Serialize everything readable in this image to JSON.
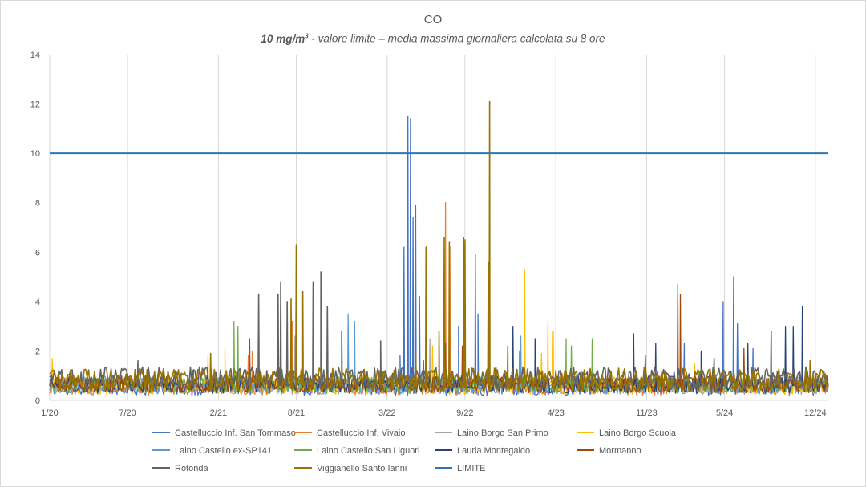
{
  "chart_data": {
    "type": "line",
    "title": "CO",
    "subtitle": {
      "limit_value": "10 mg/m",
      "unit_superscript": "3",
      "text": " - valore limite – media massima giornaliera calcolata su 8 ore"
    },
    "x_tick_labels": [
      "1/20",
      "7/20",
      "2/21",
      "8/21",
      "3/22",
      "9/22",
      "4/23",
      "11/23",
      "5/24",
      "12/24"
    ],
    "x_ticks_months": [
      0,
      6,
      13,
      19,
      26,
      32,
      39,
      46,
      52,
      59
    ],
    "x_range_months": [
      0,
      60
    ],
    "ylim": [
      0,
      14
    ],
    "y_ticks": [
      0,
      2,
      4,
      6,
      8,
      10,
      12,
      14
    ],
    "grid": "vertical",
    "legend_position": "bottom",
    "series": [
      {
        "name": "Castelluccio Inf. San Tommaso",
        "color": "#4472c4",
        "peaks": [
          [
            27.0,
            1.8
          ],
          [
            27.3,
            6.2
          ],
          [
            27.6,
            11.5
          ],
          [
            27.8,
            11.4
          ],
          [
            28.0,
            7.4
          ],
          [
            28.2,
            7.9
          ],
          [
            28.5,
            4.2
          ],
          [
            31.5,
            3.0
          ],
          [
            32.8,
            5.9
          ],
          [
            33.0,
            3.5
          ],
          [
            48.9,
            2.3
          ],
          [
            51.9,
            4.0
          ],
          [
            52.7,
            5.0
          ],
          [
            53.0,
            3.1
          ],
          [
            54.2,
            2.1
          ]
        ]
      },
      {
        "name": "Castelluccio Inf. Vivaio",
        "color": "#ed7d31",
        "peaks": [
          [
            15.3,
            1.8
          ],
          [
            15.6,
            2.0
          ],
          [
            18.7,
            3.2
          ],
          [
            30.5,
            8.0
          ],
          [
            30.9,
            6.2
          ]
        ]
      },
      {
        "name": "Laino Borgo San Primo",
        "color": "#a5a5a5",
        "peaks": [
          [
            18.9,
            2.6
          ],
          [
            29.3,
            2.5
          ],
          [
            30.0,
            2.2
          ]
        ]
      },
      {
        "name": "Laino Borgo Scuola",
        "color": "#ffc000",
        "peaks": [
          [
            0.2,
            1.7
          ],
          [
            12.2,
            1.8
          ],
          [
            13.5,
            2.1
          ],
          [
            29.5,
            2.2
          ],
          [
            36.6,
            5.3
          ],
          [
            37.9,
            1.9
          ],
          [
            38.4,
            3.2
          ],
          [
            38.8,
            2.8
          ],
          [
            49.7,
            1.5
          ]
        ]
      },
      {
        "name": "Laino Castello ex-SP141",
        "color": "#5b9bd5",
        "peaks": [
          [
            23.0,
            3.5
          ],
          [
            23.5,
            3.2
          ],
          [
            36.3,
            2.6
          ]
        ]
      },
      {
        "name": "Laino Castello San Liguori",
        "color": "#70ad47",
        "peaks": [
          [
            14.2,
            3.2
          ],
          [
            14.5,
            3.0
          ],
          [
            36.2,
            2.0
          ],
          [
            39.8,
            2.5
          ],
          [
            40.2,
            2.2
          ],
          [
            41.8,
            2.5
          ]
        ]
      },
      {
        "name": "Lauria Montegaldo",
        "color": "#264478",
        "peaks": [
          [
            35.7,
            3.0
          ],
          [
            37.4,
            2.5
          ],
          [
            45.0,
            2.7
          ],
          [
            46.7,
            2.3
          ],
          [
            50.2,
            2.0
          ],
          [
            53.8,
            2.3
          ],
          [
            56.7,
            3.0
          ],
          [
            57.3,
            3.0
          ],
          [
            58.0,
            3.8
          ]
        ]
      },
      {
        "name": "Mormanno",
        "color": "#9e480e",
        "peaks": [
          [
            30.5,
            2.3
          ],
          [
            31.8,
            2.2
          ],
          [
            48.4,
            4.7
          ],
          [
            48.6,
            4.3
          ],
          [
            53.5,
            2.1
          ]
        ]
      },
      {
        "name": "Rotonda",
        "color": "#636363",
        "peaks": [
          [
            6.8,
            1.6
          ],
          [
            11.0,
            1.2
          ],
          [
            15.4,
            2.5
          ],
          [
            16.1,
            4.3
          ],
          [
            17.6,
            4.3
          ],
          [
            17.8,
            4.8
          ],
          [
            18.3,
            4.0
          ],
          [
            20.3,
            4.8
          ],
          [
            20.9,
            5.2
          ],
          [
            21.4,
            3.8
          ],
          [
            22.5,
            2.8
          ],
          [
            25.5,
            2.4
          ],
          [
            28.8,
            1.6
          ],
          [
            45.9,
            1.8
          ],
          [
            51.2,
            1.7
          ],
          [
            55.6,
            2.8
          ]
        ]
      },
      {
        "name": "Viggianello Santo Ianni",
        "color": "#997300",
        "peaks": [
          [
            12.4,
            1.9
          ],
          [
            18.6,
            4.1
          ],
          [
            19.0,
            6.3
          ],
          [
            19.5,
            4.4
          ],
          [
            28.2,
            2.0
          ],
          [
            29.0,
            6.2
          ],
          [
            30.0,
            2.8
          ],
          [
            30.4,
            6.6
          ],
          [
            30.8,
            6.4
          ],
          [
            31.9,
            6.6
          ],
          [
            32.0,
            6.5
          ],
          [
            33.8,
            5.6
          ],
          [
            33.9,
            12.1
          ],
          [
            35.3,
            2.2
          ],
          [
            58.6,
            1.6
          ]
        ]
      },
      {
        "name": "LIMITE",
        "color": "#2e75b6",
        "constant": 10
      }
    ]
  }
}
